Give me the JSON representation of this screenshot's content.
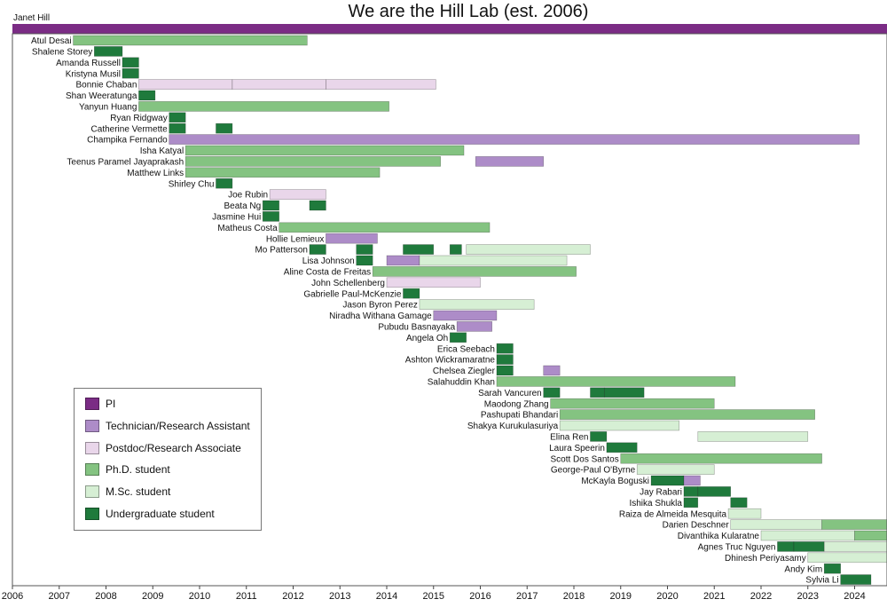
{
  "chart_data": {
    "type": "gantt",
    "title": "We are the Hill Lab (est. 2006)",
    "xlim": [
      2006,
      2024.7
    ],
    "xticks": [
      2006,
      2007,
      2008,
      2009,
      2010,
      2011,
      2012,
      2013,
      2014,
      2015,
      2016,
      2017,
      2018,
      2019,
      2020,
      2021,
      2022,
      2023,
      2024
    ],
    "roles": {
      "pi": {
        "label": "PI",
        "color": "#7b2c85"
      },
      "tech": {
        "label": "Technician/Research Assistant",
        "color": "#ad8cc8"
      },
      "postdoc": {
        "label": "Postdoc/Research Associate",
        "color": "#e9d6ea"
      },
      "phd": {
        "label": "Ph.D. student",
        "color": "#84c381"
      },
      "msc": {
        "label": "M.Sc. student",
        "color": "#d6efd4"
      },
      "ug": {
        "label": "Undergraduate student",
        "color": "#1f7a3c"
      }
    },
    "legend_order": [
      "pi",
      "tech",
      "postdoc",
      "phd",
      "msc",
      "ug"
    ],
    "pi": {
      "name": "Janet Hill",
      "start": 2006.0,
      "end": 2024.7,
      "role": "pi"
    },
    "members": [
      {
        "name": "Atul Desai",
        "spans": [
          [
            2007.3,
            2012.3,
            "phd"
          ]
        ]
      },
      {
        "name": "Shalene Storey",
        "spans": [
          [
            2007.75,
            2008.35,
            "ug"
          ]
        ]
      },
      {
        "name": "Amanda Russell",
        "spans": [
          [
            2008.35,
            2008.7,
            "ug"
          ]
        ]
      },
      {
        "name": "Kristyna Musil",
        "spans": [
          [
            2008.35,
            2008.7,
            "ug"
          ]
        ]
      },
      {
        "name": "Bonnie Chaban",
        "spans": [
          [
            2008.7,
            2010.7,
            "postdoc"
          ],
          [
            2010.7,
            2012.7,
            "postdoc"
          ],
          [
            2012.7,
            2015.05,
            "postdoc"
          ]
        ]
      },
      {
        "name": "Shan Weeratunga",
        "spans": [
          [
            2008.7,
            2009.05,
            "ug"
          ]
        ]
      },
      {
        "name": "Yanyun Huang",
        "spans": [
          [
            2008.7,
            2014.05,
            "phd"
          ]
        ]
      },
      {
        "name": "Ryan Ridgway",
        "spans": [
          [
            2009.35,
            2009.7,
            "ug"
          ]
        ]
      },
      {
        "name": "Catherine Vermette",
        "spans": [
          [
            2009.35,
            2009.7,
            "ug"
          ],
          [
            2010.35,
            2010.7,
            "ug"
          ]
        ]
      },
      {
        "name": "Champika Fernando",
        "spans": [
          [
            2009.35,
            2024.1,
            "tech"
          ]
        ]
      },
      {
        "name": "Isha Katyal",
        "spans": [
          [
            2009.7,
            2015.65,
            "phd"
          ]
        ]
      },
      {
        "name": "Teenus Paramel Jayaprakash",
        "spans": [
          [
            2009.7,
            2015.15,
            "phd"
          ],
          [
            2015.9,
            2017.35,
            "tech"
          ]
        ]
      },
      {
        "name": "Matthew Links",
        "spans": [
          [
            2009.7,
            2013.85,
            "phd"
          ]
        ]
      },
      {
        "name": "Shirley Chu",
        "spans": [
          [
            2010.35,
            2010.7,
            "ug"
          ]
        ]
      },
      {
        "name": "Joe Rubin",
        "spans": [
          [
            2011.5,
            2012.7,
            "postdoc"
          ]
        ]
      },
      {
        "name": "Beata Ng",
        "spans": [
          [
            2011.35,
            2011.7,
            "ug"
          ],
          [
            2012.35,
            2012.7,
            "ug"
          ]
        ]
      },
      {
        "name": "Jasmine Hui",
        "spans": [
          [
            2011.35,
            2011.7,
            "ug"
          ]
        ]
      },
      {
        "name": "Matheus Costa",
        "spans": [
          [
            2011.7,
            2016.2,
            "phd"
          ]
        ]
      },
      {
        "name": "Hollie Lemieux",
        "spans": [
          [
            2012.7,
            2013.8,
            "tech"
          ]
        ]
      },
      {
        "name": "Mo Patterson",
        "spans": [
          [
            2012.35,
            2012.7,
            "ug"
          ],
          [
            2013.35,
            2013.7,
            "ug"
          ],
          [
            2014.35,
            2015.0,
            "ug"
          ],
          [
            2015.35,
            2015.6,
            "ug"
          ],
          [
            2015.7,
            2018.35,
            "msc"
          ]
        ]
      },
      {
        "name": "Lisa Johnson",
        "spans": [
          [
            2013.35,
            2013.7,
            "ug"
          ],
          [
            2014.0,
            2014.7,
            "tech"
          ],
          [
            2014.7,
            2017.85,
            "msc"
          ]
        ]
      },
      {
        "name": "Aline Costa de Freitas",
        "spans": [
          [
            2013.7,
            2018.05,
            "phd"
          ]
        ]
      },
      {
        "name": "John Schellenberg",
        "spans": [
          [
            2014.0,
            2016.0,
            "postdoc"
          ]
        ]
      },
      {
        "name": "Gabrielle Paul-McKenzie",
        "spans": [
          [
            2014.35,
            2014.7,
            "ug"
          ]
        ]
      },
      {
        "name": "Jason Byron Perez",
        "spans": [
          [
            2014.7,
            2017.15,
            "msc"
          ]
        ]
      },
      {
        "name": "Niradha Withana Gamage",
        "spans": [
          [
            2015.0,
            2016.35,
            "tech"
          ]
        ]
      },
      {
        "name": "Pubudu Basnayaka",
        "spans": [
          [
            2015.5,
            2016.25,
            "tech"
          ]
        ]
      },
      {
        "name": "Angela Oh",
        "spans": [
          [
            2015.35,
            2015.7,
            "ug"
          ]
        ]
      },
      {
        "name": "Erica Seebach",
        "spans": [
          [
            2016.35,
            2016.7,
            "ug"
          ]
        ]
      },
      {
        "name": "Ashton Wickramaratne",
        "spans": [
          [
            2016.35,
            2016.7,
            "ug"
          ]
        ]
      },
      {
        "name": "Chelsea Ziegler",
        "spans": [
          [
            2016.35,
            2016.7,
            "ug"
          ],
          [
            2017.35,
            2017.7,
            "tech"
          ]
        ]
      },
      {
        "name": "Salahuddin Khan",
        "spans": [
          [
            2016.35,
            2021.45,
            "phd"
          ]
        ]
      },
      {
        "name": "Sarah Vancuren",
        "spans": [
          [
            2017.35,
            2017.7,
            "ug"
          ],
          [
            2018.35,
            2018.65,
            "ug"
          ],
          [
            2018.65,
            2019.5,
            "ug"
          ]
        ]
      },
      {
        "name": "Maodong Zhang",
        "spans": [
          [
            2017.5,
            2021.0,
            "phd"
          ]
        ]
      },
      {
        "name": "Pashupati Bhandari",
        "spans": [
          [
            2017.7,
            2023.15,
            "phd"
          ]
        ]
      },
      {
        "name": "Shakya Kurukulasuriya",
        "spans": [
          [
            2017.7,
            2020.25,
            "msc"
          ]
        ]
      },
      {
        "name": "Elina Ren",
        "spans": [
          [
            2018.35,
            2018.7,
            "ug"
          ],
          [
            2020.65,
            2023.0,
            "msc"
          ]
        ]
      },
      {
        "name": "Laura Speerin",
        "spans": [
          [
            2018.7,
            2019.35,
            "ug"
          ]
        ]
      },
      {
        "name": "Scott Dos Santos",
        "spans": [
          [
            2019.0,
            2023.3,
            "phd"
          ]
        ]
      },
      {
        "name": "George-Paul O'Byrne",
        "spans": [
          [
            2019.35,
            2021.0,
            "msc"
          ]
        ]
      },
      {
        "name": "McKayla Boguski",
        "spans": [
          [
            2019.65,
            2020.35,
            "ug"
          ],
          [
            2020.35,
            2020.7,
            "tech"
          ]
        ]
      },
      {
        "name": "Jay Rabari",
        "spans": [
          [
            2020.35,
            2020.65,
            "ug"
          ],
          [
            2020.65,
            2021.35,
            "ug"
          ]
        ]
      },
      {
        "name": "Ishika Shukla",
        "spans": [
          [
            2020.35,
            2020.65,
            "ug"
          ],
          [
            2021.35,
            2021.7,
            "ug"
          ]
        ]
      },
      {
        "name": "Raiza de Almeida Mesquita",
        "spans": [
          [
            2021.3,
            2022.0,
            "msc"
          ]
        ]
      },
      {
        "name": "Darien Deschner",
        "spans": [
          [
            2021.35,
            2023.3,
            "msc"
          ],
          [
            2023.3,
            2024.7,
            "phd"
          ]
        ]
      },
      {
        "name": "Divanthika Kularatne",
        "spans": [
          [
            2022.0,
            2024.0,
            "msc"
          ],
          [
            2024.0,
            2024.7,
            "phd"
          ]
        ]
      },
      {
        "name": "Agnes Truc Nguyen",
        "spans": [
          [
            2022.35,
            2022.7,
            "ug"
          ],
          [
            2022.7,
            2023.35,
            "ug"
          ],
          [
            2023.35,
            2024.7,
            "msc"
          ]
        ]
      },
      {
        "name": "Dhinesh Periyasamy",
        "spans": [
          [
            2023.0,
            2024.7,
            "msc"
          ]
        ]
      },
      {
        "name": "Andy Kim",
        "spans": [
          [
            2023.35,
            2023.7,
            "ug"
          ]
        ]
      },
      {
        "name": "Sylvia Li",
        "spans": [
          [
            2023.7,
            2024.35,
            "ug"
          ]
        ]
      }
    ]
  }
}
